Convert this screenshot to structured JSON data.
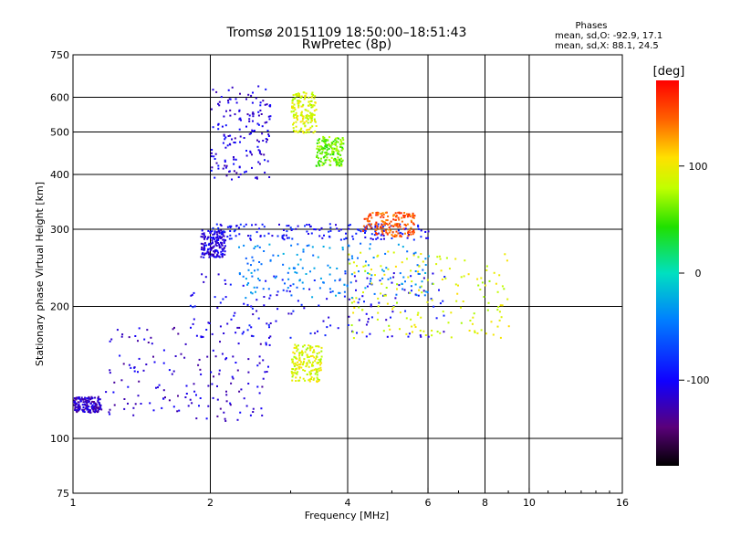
{
  "chart_data": {
    "type": "scatter",
    "title": "Tromsø 20151109 18:50:00–18:51:43",
    "subtitle": "RwPretec (8p)",
    "xlabel": "Frequency [MHz]",
    "ylabel": "Stationary phase Virtual Height [km]",
    "x_scale": "log",
    "y_scale": "log",
    "xlim": [
      1,
      16
    ],
    "ylim": [
      75,
      750
    ],
    "x_ticks": [
      1,
      2,
      4,
      6,
      8,
      10,
      16
    ],
    "y_ticks": [
      75,
      100,
      200,
      300,
      400,
      500,
      600,
      750
    ],
    "x_gridlines": [
      2,
      4,
      6,
      8,
      10
    ],
    "y_gridlines": [
      100,
      200,
      300,
      400,
      500,
      600
    ],
    "stats": {
      "heading": "Phases",
      "line1": "mean, sd,O: -92.9, 17.1",
      "line2": "mean, sd,X:  88.1, 24.5"
    },
    "colorbar": {
      "label": "[deg]",
      "range": [
        -180,
        180
      ],
      "ticks": [
        100,
        0,
        -100
      ],
      "colormap": "rainbow (black-purple-blue-cyan-green-yellow-red)"
    },
    "clusters": [
      {
        "f": [
          2.0,
          2.7
        ],
        "h": [
          390,
          640
        ],
        "phase": -110
      },
      {
        "f": [
          3.4,
          3.9
        ],
        "h": [
          420,
          490
        ],
        "phase": 60
      },
      {
        "f": [
          3.0,
          3.4
        ],
        "h": [
          500,
          620
        ],
        "phase": 90
      },
      {
        "f": [
          1.9,
          2.15
        ],
        "h": [
          260,
          300
        ],
        "phase": -110
      },
      {
        "f": [
          2.0,
          6.0
        ],
        "h": [
          285,
          310
        ],
        "phase": -95
      },
      {
        "f": [
          4.3,
          5.6
        ],
        "h": [
          290,
          330
        ],
        "phase": 150
      },
      {
        "f": [
          1.0,
          1.15
        ],
        "h": [
          115,
          125
        ],
        "phase": -120
      },
      {
        "f": [
          1.15,
          2.7
        ],
        "h": [
          110,
          180
        ],
        "phase": -115
      },
      {
        "f": [
          1.8,
          6.5
        ],
        "h": [
          170,
          240
        ],
        "phase": -100
      },
      {
        "f": [
          4.0,
          9.0
        ],
        "h": [
          170,
          270
        ],
        "phase": 90
      },
      {
        "f": [
          3.0,
          3.5
        ],
        "h": [
          135,
          165
        ],
        "phase": 90
      },
      {
        "f": [
          2.3,
          6.0
        ],
        "h": [
          210,
          280
        ],
        "phase": -40
      }
    ]
  }
}
